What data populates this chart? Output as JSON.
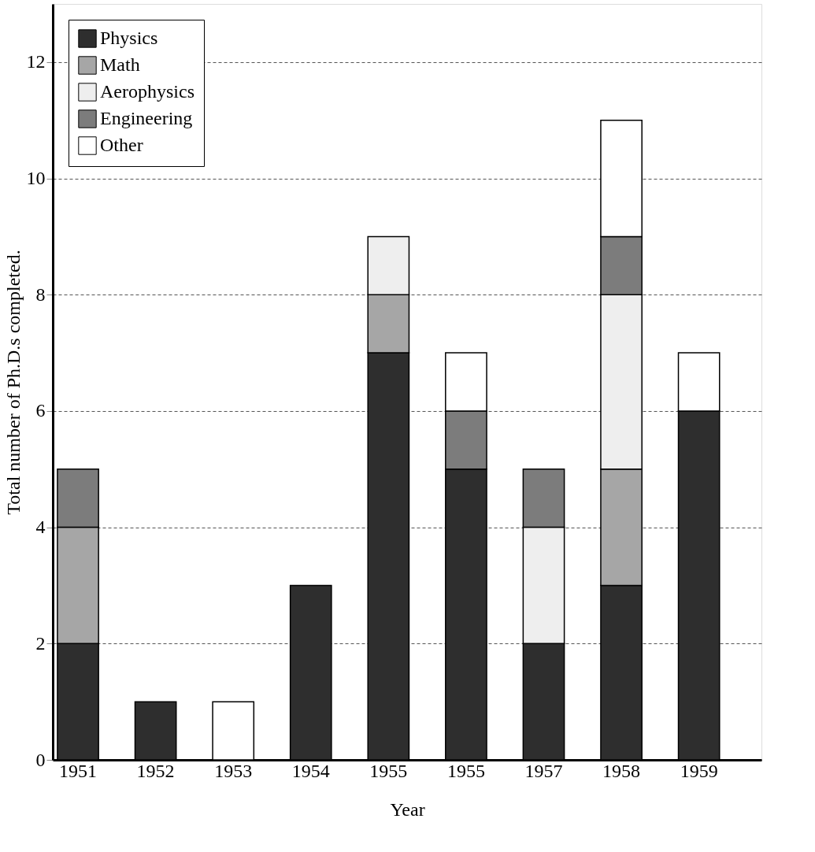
{
  "chart_data": {
    "type": "bar",
    "stacked": true,
    "xlabel": "Year",
    "ylabel": "Total number of Ph.D.s completed.",
    "categories": [
      "1951",
      "1952",
      "1953",
      "1954",
      "1955",
      "1955",
      "1957",
      "1958",
      "1959"
    ],
    "series": [
      {
        "name": "Physics",
        "color": "#2e2e2e",
        "values": [
          2,
          1,
          0,
          3,
          7,
          5,
          2,
          3,
          6
        ]
      },
      {
        "name": "Math",
        "color": "#a6a6a6",
        "values": [
          2,
          0,
          0,
          0,
          1,
          0,
          0,
          2,
          0
        ]
      },
      {
        "name": "Aerophysics",
        "color": "#eeeeee",
        "values": [
          0,
          0,
          0,
          0,
          1,
          0,
          2,
          3,
          0
        ]
      },
      {
        "name": "Engineering",
        "color": "#7c7c7c",
        "values": [
          1,
          0,
          0,
          0,
          0,
          1,
          1,
          1,
          0
        ]
      },
      {
        "name": "Other",
        "color": "#ffffff",
        "values": [
          0,
          0,
          1,
          0,
          0,
          1,
          0,
          2,
          1
        ]
      }
    ],
    "ylim": [
      0,
      13
    ],
    "yticks": [
      0,
      2,
      4,
      6,
      8,
      10,
      12
    ],
    "grid": "y",
    "legend": "top left"
  }
}
